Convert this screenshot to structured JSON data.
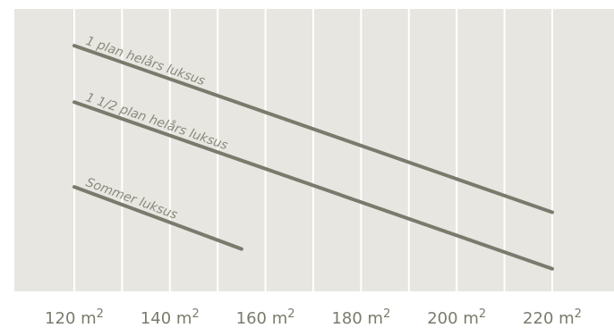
{
  "chart_data": {
    "type": "line",
    "title": "",
    "xlabel": "",
    "ylabel": "",
    "x_ticks": [
      {
        "value": 120,
        "label": "120 m",
        "sup": "2"
      },
      {
        "value": 140,
        "label": "140 m",
        "sup": "2"
      },
      {
        "value": 160,
        "label": "160 m",
        "sup": "2"
      },
      {
        "value": 180,
        "label": "180 m",
        "sup": "2"
      },
      {
        "value": 200,
        "label": "200 m",
        "sup": "2"
      },
      {
        "value": 220,
        "label": "220 m",
        "sup": "2"
      }
    ],
    "xlim": [
      120,
      220
    ],
    "ylim": [
      0,
      100
    ],
    "grid": "vertical",
    "series": [
      {
        "name": "1 plan helårs luksus",
        "x": [
          120,
          220
        ],
        "y": [
          87,
          28
        ]
      },
      {
        "name": "1 1/2 plan helårs luksus",
        "x": [
          120,
          220
        ],
        "y": [
          67,
          8
        ]
      },
      {
        "name": "Sommer luksus",
        "x": [
          120,
          155
        ],
        "y": [
          37,
          15
        ]
      }
    ]
  },
  "colors": {
    "background": "#e8e6e1",
    "grid": "#ffffff",
    "line": "#7a7a6d",
    "label": "#8a8a7c",
    "tick": "#7a7a6d"
  }
}
